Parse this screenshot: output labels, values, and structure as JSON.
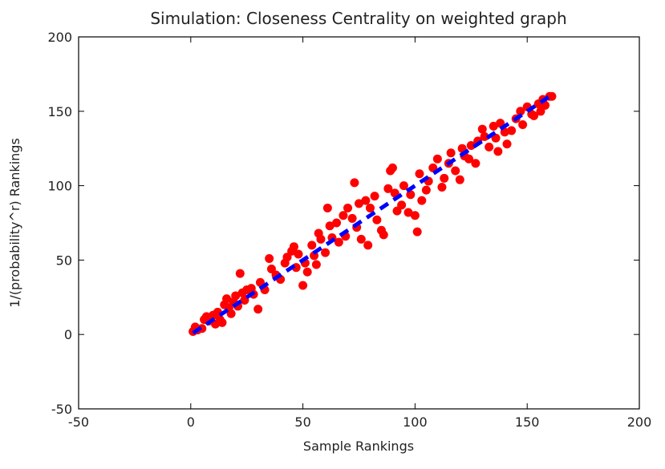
{
  "chart_data": {
    "type": "scatter",
    "title": "Simulation: Closeness Centrality on weighted graph",
    "xlabel": "Sample Rankings",
    "ylabel": "1/(probability^r) Rankings",
    "xlim": [
      -50,
      200
    ],
    "ylim": [
      -50,
      200
    ],
    "xticks": [
      -50,
      0,
      50,
      100,
      150,
      200
    ],
    "yticks": [
      -50,
      0,
      50,
      100,
      150,
      200
    ],
    "grid": false,
    "series": [
      {
        "type": "scatter",
        "color": "#ff0000",
        "x": [
          1,
          2,
          3,
          5,
          6,
          7,
          8,
          10,
          11,
          12,
          13,
          14,
          15,
          16,
          17,
          18,
          19,
          20,
          21,
          22,
          23,
          24,
          25,
          27,
          28,
          30,
          31,
          33,
          35,
          36,
          38,
          40,
          42,
          43,
          45,
          46,
          47,
          48,
          50,
          51,
          52,
          54,
          55,
          56,
          57,
          58,
          60,
          61,
          62,
          63,
          65,
          66,
          68,
          69,
          70,
          72,
          73,
          74,
          75,
          76,
          78,
          79,
          80,
          82,
          83,
          85,
          86,
          88,
          89,
          90,
          91,
          92,
          94,
          95,
          97,
          98,
          100,
          101,
          102,
          103,
          105,
          106,
          108,
          110,
          112,
          113,
          115,
          116,
          118,
          120,
          121,
          122,
          124,
          125,
          127,
          128,
          130,
          131,
          133,
          135,
          136,
          137,
          138,
          140,
          141,
          143,
          145,
          147,
          148,
          150,
          152,
          153,
          155,
          156,
          157,
          158,
          160,
          161
        ],
        "values": [
          2,
          5,
          3,
          4,
          10,
          12,
          9,
          13,
          7,
          15,
          10,
          8,
          20,
          24,
          18,
          14,
          22,
          26,
          19,
          41,
          28,
          23,
          30,
          31,
          27,
          17,
          35,
          30,
          51,
          44,
          40,
          37,
          48,
          52,
          56,
          59,
          45,
          54,
          33,
          48,
          42,
          60,
          53,
          47,
          68,
          64,
          55,
          85,
          73,
          65,
          75,
          62,
          80,
          66,
          85,
          78,
          102,
          72,
          88,
          64,
          90,
          60,
          85,
          93,
          77,
          70,
          67,
          98,
          110,
          112,
          95,
          83,
          87,
          100,
          82,
          94,
          80,
          69,
          108,
          90,
          97,
          103,
          112,
          118,
          99,
          105,
          115,
          122,
          110,
          104,
          125,
          120,
          118,
          127,
          115,
          130,
          138,
          133,
          126,
          140,
          132,
          123,
          142,
          136,
          128,
          137,
          145,
          150,
          141,
          153,
          148,
          147,
          155,
          150,
          158,
          154,
          160,
          160
        ]
      },
      {
        "type": "line",
        "color": "#0000ff",
        "x": [
          1,
          160
        ],
        "values": [
          1,
          160
        ]
      }
    ]
  }
}
